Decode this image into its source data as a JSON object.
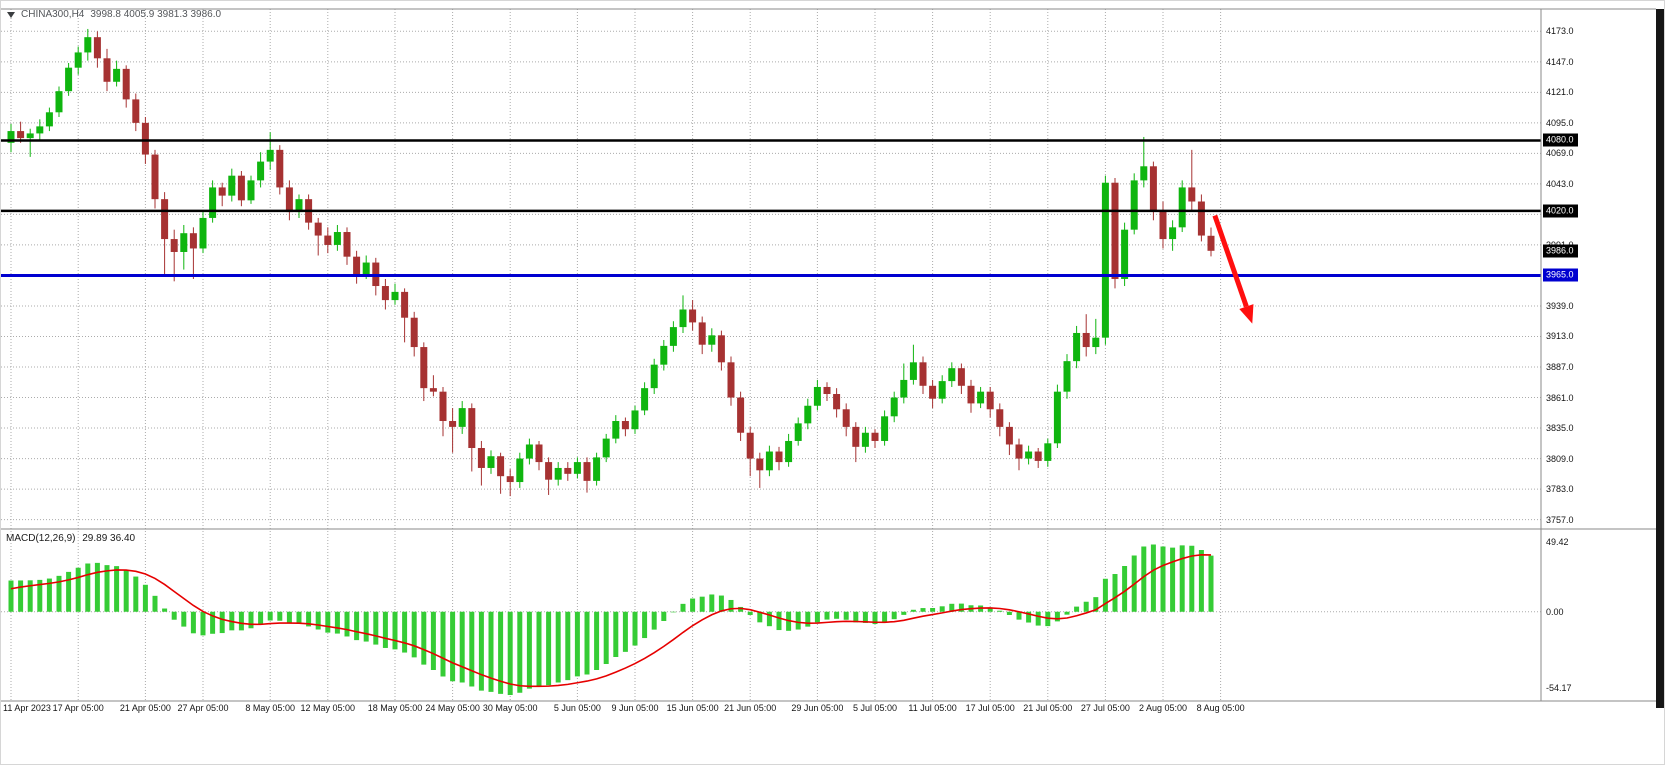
{
  "header": {
    "symbol_title": "CHINA300,H4",
    "ohlc_text": "3998.8 4005.9 3981.3 3986.0"
  },
  "macd_label": {
    "name": "MACD(12,26,9)",
    "values": "29.89 36.40"
  },
  "chart_data": {
    "type": "candlestick",
    "symbol": "CHINA300",
    "timeframe": "H4",
    "ohlc_current": {
      "open": 3998.8,
      "high": 4005.9,
      "low": 3981.3,
      "close": 3986.0
    },
    "colors": {
      "up": "#0fb50f",
      "down": "#a63232",
      "grid": "#ababab",
      "histogram": "#35cc35",
      "signal": "#e60000",
      "level_black": "#000000",
      "level_blue": "#0000d0",
      "arrow": "#ff0f0f",
      "border": "#8a8a8a"
    },
    "price_axis": {
      "min": 3749,
      "max": 4192,
      "decimals": 1,
      "ticks": [
        4173,
        4147,
        4121,
        4095,
        4069,
        4043,
        4017,
        3991,
        3965,
        3939,
        3913,
        3887,
        3861,
        3835,
        3809,
        3783,
        3757
      ]
    },
    "levels": [
      {
        "value": 4080.0,
        "label": "4080.0",
        "color": "#000000",
        "label_bg": "#000000",
        "width": 2.5
      },
      {
        "value": 4020.0,
        "label": "4020.0",
        "color": "#000000",
        "label_bg": "#000000",
        "width": 2.5
      },
      {
        "value": 3965.0,
        "label": "3965.0",
        "color": "#0000d0",
        "label_bg": "#0000d0",
        "width": 3
      }
    ],
    "current_price_tag": {
      "value": 3986.0,
      "label": "3986.0",
      "bg": "#000000"
    },
    "candles": [
      [
        4078,
        4094,
        4070,
        4088
      ],
      [
        4088,
        4096,
        4078,
        4082
      ],
      [
        4082,
        4090,
        4066,
        4086
      ],
      [
        4086,
        4098,
        4080,
        4092
      ],
      [
        4092,
        4108,
        4088,
        4104
      ],
      [
        4104,
        4126,
        4100,
        4122
      ],
      [
        4122,
        4146,
        4118,
        4142
      ],
      [
        4142,
        4160,
        4136,
        4155
      ],
      [
        4155,
        4175,
        4148,
        4168
      ],
      [
        4168,
        4173,
        4142,
        4150
      ],
      [
        4150,
        4158,
        4122,
        4130
      ],
      [
        4130,
        4148,
        4126,
        4141
      ],
      [
        4141,
        4144,
        4108,
        4115
      ],
      [
        4115,
        4120,
        4088,
        4095
      ],
      [
        4095,
        4100,
        4060,
        4068
      ],
      [
        4068,
        4072,
        4022,
        4030
      ],
      [
        4030,
        4036,
        3966,
        3996
      ],
      [
        3996,
        4004,
        3960,
        3985
      ],
      [
        3985,
        4008,
        3970,
        4001
      ],
      [
        4001,
        4006,
        3962,
        3988
      ],
      [
        3988,
        4020,
        3984,
        4014
      ],
      [
        4014,
        4046,
        4010,
        4040
      ],
      [
        4040,
        4044,
        4024,
        4033
      ],
      [
        4033,
        4056,
        4028,
        4050
      ],
      [
        4050,
        4054,
        4024,
        4029
      ],
      [
        4029,
        4050,
        4026,
        4046
      ],
      [
        4046,
        4070,
        4040,
        4062
      ],
      [
        4062,
        4087,
        4055,
        4072
      ],
      [
        4072,
        4076,
        4034,
        4040
      ],
      [
        4040,
        4046,
        4012,
        4019
      ],
      [
        4019,
        4034,
        4014,
        4030
      ],
      [
        4030,
        4034,
        4004,
        4010
      ],
      [
        4010,
        4014,
        3982,
        3999
      ],
      [
        3999,
        4006,
        3984,
        3991
      ],
      [
        3991,
        4008,
        3986,
        4002
      ],
      [
        4002,
        4006,
        3974,
        3981
      ],
      [
        3981,
        3986,
        3958,
        3966
      ],
      [
        3966,
        3982,
        3962,
        3976
      ],
      [
        3976,
        3980,
        3948,
        3956
      ],
      [
        3956,
        3962,
        3936,
        3944
      ],
      [
        3944,
        3958,
        3940,
        3951
      ],
      [
        3951,
        3954,
        3908,
        3929
      ],
      [
        3929,
        3934,
        3896,
        3904
      ],
      [
        3904,
        3908,
        3858,
        3869
      ],
      [
        3869,
        3880,
        3862,
        3866
      ],
      [
        3866,
        3870,
        3828,
        3841
      ],
      [
        3841,
        3852,
        3814,
        3836
      ],
      [
        3836,
        3858,
        3830,
        3852
      ],
      [
        3852,
        3856,
        3798,
        3818
      ],
      [
        3818,
        3824,
        3786,
        3801
      ],
      [
        3801,
        3816,
        3796,
        3811
      ],
      [
        3811,
        3814,
        3779,
        3794
      ],
      [
        3794,
        3800,
        3777,
        3789
      ],
      [
        3789,
        3814,
        3784,
        3809
      ],
      [
        3809,
        3826,
        3804,
        3821
      ],
      [
        3821,
        3824,
        3799,
        3806
      ],
      [
        3806,
        3810,
        3778,
        3791
      ],
      [
        3791,
        3806,
        3786,
        3801
      ],
      [
        3801,
        3806,
        3790,
        3796
      ],
      [
        3796,
        3810,
        3792,
        3806
      ],
      [
        3806,
        3810,
        3780,
        3790
      ],
      [
        3790,
        3814,
        3786,
        3810
      ],
      [
        3810,
        3830,
        3806,
        3826
      ],
      [
        3826,
        3846,
        3822,
        3841
      ],
      [
        3841,
        3844,
        3828,
        3834
      ],
      [
        3834,
        3854,
        3830,
        3850
      ],
      [
        3850,
        3874,
        3846,
        3869
      ],
      [
        3869,
        3894,
        3864,
        3889
      ],
      [
        3889,
        3910,
        3884,
        3905
      ],
      [
        3905,
        3926,
        3900,
        3921
      ],
      [
        3921,
        3948,
        3916,
        3936
      ],
      [
        3936,
        3944,
        3918,
        3925
      ],
      [
        3925,
        3930,
        3898,
        3906
      ],
      [
        3906,
        3920,
        3900,
        3914
      ],
      [
        3914,
        3918,
        3884,
        3891
      ],
      [
        3891,
        3896,
        3854,
        3861
      ],
      [
        3861,
        3866,
        3824,
        3831
      ],
      [
        3831,
        3836,
        3794,
        3809
      ],
      [
        3809,
        3814,
        3784,
        3799
      ],
      [
        3799,
        3820,
        3794,
        3815
      ],
      [
        3815,
        3819,
        3799,
        3806
      ],
      [
        3806,
        3830,
        3802,
        3824
      ],
      [
        3824,
        3844,
        3820,
        3839
      ],
      [
        3839,
        3860,
        3834,
        3854
      ],
      [
        3854,
        3876,
        3850,
        3870
      ],
      [
        3870,
        3874,
        3858,
        3864
      ],
      [
        3864,
        3869,
        3844,
        3851
      ],
      [
        3851,
        3856,
        3828,
        3836
      ],
      [
        3836,
        3840,
        3806,
        3819
      ],
      [
        3819,
        3836,
        3814,
        3831
      ],
      [
        3831,
        3834,
        3818,
        3824
      ],
      [
        3824,
        3850,
        3820,
        3845
      ],
      [
        3845,
        3866,
        3840,
        3861
      ],
      [
        3861,
        3890,
        3856,
        3876
      ],
      [
        3876,
        3906,
        3872,
        3891
      ],
      [
        3891,
        3896,
        3864,
        3871
      ],
      [
        3871,
        3876,
        3852,
        3860
      ],
      [
        3860,
        3880,
        3856,
        3875
      ],
      [
        3875,
        3891,
        3870,
        3886
      ],
      [
        3886,
        3890,
        3864,
        3871
      ],
      [
        3871,
        3876,
        3848,
        3856
      ],
      [
        3856,
        3870,
        3852,
        3866
      ],
      [
        3866,
        3870,
        3844,
        3851
      ],
      [
        3851,
        3856,
        3828,
        3836
      ],
      [
        3836,
        3840,
        3812,
        3821
      ],
      [
        3821,
        3826,
        3799,
        3809
      ],
      [
        3809,
        3820,
        3804,
        3815
      ],
      [
        3815,
        3818,
        3801,
        3807
      ],
      [
        3807,
        3826,
        3802,
        3822
      ],
      [
        3822,
        3872,
        3818,
        3866
      ],
      [
        3866,
        3898,
        3860,
        3892
      ],
      [
        3892,
        3922,
        3886,
        3916
      ],
      [
        3916,
        3932,
        3896,
        3904
      ],
      [
        3904,
        3928,
        3898,
        3912
      ],
      [
        3912,
        4050,
        3906,
        4044
      ],
      [
        4044,
        4048,
        3954,
        3962
      ],
      [
        3962,
        4010,
        3956,
        4004
      ],
      [
        4004,
        4052,
        4000,
        4046
      ],
      [
        4046,
        4083,
        4040,
        4058
      ],
      [
        4058,
        4062,
        4012,
        4020
      ],
      [
        4020,
        4028,
        3988,
        3996
      ],
      [
        3996,
        4012,
        3986,
        4006
      ],
      [
        4006,
        4046,
        4002,
        4040
      ],
      [
        4040,
        4072,
        4020,
        4028
      ],
      [
        4028,
        4034,
        3994,
        3999
      ],
      [
        3998.8,
        4005.9,
        3981.3,
        3986.0
      ]
    ],
    "x_labels": [
      {
        "text": "11 Apr 2023",
        "index": 0
      },
      {
        "text": "17 Apr 05:00",
        "index": 7
      },
      {
        "text": "21 Apr 05:00",
        "index": 14
      },
      {
        "text": "27 Apr 05:00",
        "index": 20
      },
      {
        "text": "8 May 05:00",
        "index": 27
      },
      {
        "text": "12 May 05:00",
        "index": 33
      },
      {
        "text": "18 May 05:00",
        "index": 40
      },
      {
        "text": "24 May 05:00",
        "index": 46
      },
      {
        "text": "30 May 05:00",
        "index": 52
      },
      {
        "text": "5 Jun 05:00",
        "index": 59
      },
      {
        "text": "9 Jun 05:00",
        "index": 65
      },
      {
        "text": "15 Jun 05:00",
        "index": 71
      },
      {
        "text": "21 Jun 05:00",
        "index": 77
      },
      {
        "text": "29 Jun 05:00",
        "index": 84
      },
      {
        "text": "5 Jul 05:00",
        "index": 90
      },
      {
        "text": "11 Jul 05:00",
        "index": 96
      },
      {
        "text": "17 Jul 05:00",
        "index": 102
      },
      {
        "text": "21 Jul 05:00",
        "index": 108
      },
      {
        "text": "27 Jul 05:00",
        "index": 114
      },
      {
        "text": "2 Aug 05:00",
        "index": 120
      },
      {
        "text": "8 Aug 05:00",
        "index": 126
      }
    ],
    "macd": {
      "label": "MACD(12,26,9)",
      "main": 29.89,
      "signal": 36.4,
      "axis_labels": [
        {
          "text": "49.42",
          "value": 49.42
        },
        {
          "text": "0.00",
          "value": 0.0
        },
        {
          "text": "-54.17",
          "value": -54.17
        }
      ],
      "scale": {
        "max": 57,
        "min": -63
      }
    },
    "annotation_arrow": {
      "color": "#ff0f0f",
      "from": {
        "bar": 125.4,
        "price": 4016
      },
      "to": {
        "bar": 129.3,
        "price": 3924
      }
    }
  }
}
